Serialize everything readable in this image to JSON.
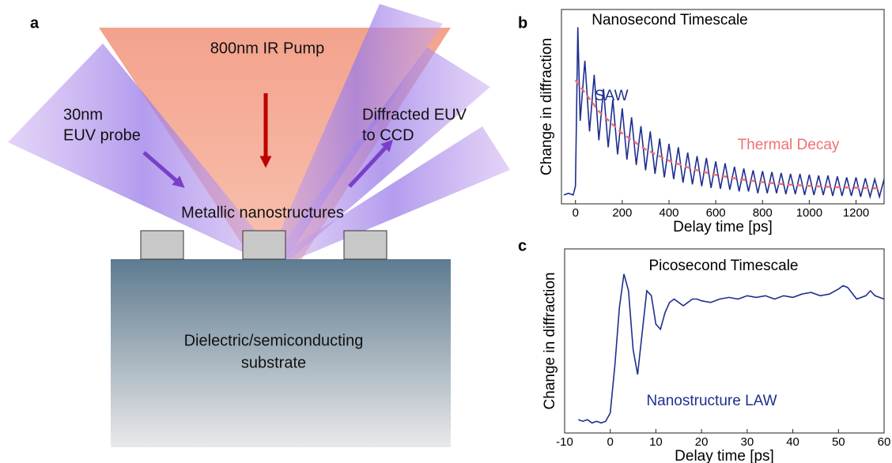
{
  "diagram": {
    "label": "a",
    "pump": "800nm IR Pump",
    "probe": [
      "30nm",
      "EUV probe"
    ],
    "diffracted": [
      "Diffracted EUV",
      "to CCD"
    ],
    "nanostructures": "Metallic nanostructures",
    "substrate": [
      "Dielectric/semiconducting",
      "substrate"
    ]
  },
  "chart_data": [
    {
      "type": "line",
      "panel_label": "b",
      "xlabel": "Delay time [ps]",
      "ylabel": "Change in diffraction",
      "xlim": [
        -60,
        1320
      ],
      "xticks": [
        0,
        200,
        400,
        600,
        800,
        1000,
        1200
      ],
      "ylim": [
        0,
        1.1
      ],
      "annotations": [
        {
          "text": "Nanosecond Timescale",
          "color": "#000000"
        },
        {
          "text": "SAW",
          "color": "#1f2f8f"
        },
        {
          "text": "Thermal Decay",
          "color": "#f07070"
        }
      ],
      "series": [
        {
          "style": "solid",
          "color": "#1f2f8f",
          "x": [
            -50,
            -30,
            -10,
            0,
            10,
            20,
            40,
            60,
            80,
            100,
            120,
            140,
            160,
            180,
            200,
            220,
            240,
            260,
            280,
            300,
            320,
            340,
            360,
            380,
            400,
            420,
            440,
            460,
            480,
            500,
            520,
            540,
            560,
            580,
            600,
            620,
            640,
            660,
            680,
            700,
            720,
            740,
            760,
            780,
            800,
            820,
            840,
            860,
            880,
            900,
            920,
            940,
            960,
            980,
            1000,
            1020,
            1040,
            1060,
            1080,
            1100,
            1120,
            1140,
            1160,
            1180,
            1200,
            1220,
            1240,
            1260,
            1280,
            1300,
            1320
          ],
          "values": [
            0.05,
            0.06,
            0.05,
            0.1,
            1.0,
            0.47,
            0.81,
            0.41,
            0.73,
            0.36,
            0.65,
            0.32,
            0.59,
            0.28,
            0.54,
            0.25,
            0.49,
            0.22,
            0.44,
            0.19,
            0.41,
            0.17,
            0.37,
            0.15,
            0.34,
            0.14,
            0.32,
            0.12,
            0.29,
            0.11,
            0.27,
            0.1,
            0.26,
            0.09,
            0.24,
            0.085,
            0.23,
            0.08,
            0.21,
            0.07,
            0.2,
            0.07,
            0.19,
            0.06,
            0.185,
            0.06,
            0.18,
            0.06,
            0.175,
            0.055,
            0.17,
            0.055,
            0.17,
            0.05,
            0.165,
            0.05,
            0.16,
            0.05,
            0.16,
            0.045,
            0.155,
            0.045,
            0.15,
            0.045,
            0.15,
            0.04,
            0.145,
            0.04,
            0.14,
            0.04,
            0.14
          ]
        },
        {
          "style": "dashed",
          "color": "#f07070",
          "x": [
            0,
            100,
            200,
            300,
            400,
            500,
            600,
            700,
            800,
            900,
            1000,
            1100,
            1200,
            1300
          ],
          "values": [
            0.7,
            0.524,
            0.398,
            0.308,
            0.244,
            0.197,
            0.164,
            0.14,
            0.123,
            0.11,
            0.102,
            0.095,
            0.091,
            0.088
          ]
        }
      ]
    },
    {
      "type": "line",
      "panel_label": "c",
      "xlabel": "Delay time [ps]",
      "ylabel": "Change in diffraction",
      "xlim": [
        -10,
        60
      ],
      "xticks": [
        -10,
        0,
        10,
        20,
        30,
        40,
        50,
        60
      ],
      "ylim": [
        0,
        1.1
      ],
      "annotations": [
        {
          "text": "Picosecond Timescale",
          "color": "#000000"
        },
        {
          "text": "Nanostructure LAW",
          "color": "#1f2f8f"
        }
      ],
      "series": [
        {
          "style": "solid",
          "color": "#1f2f8f",
          "x": [
            -7,
            -6,
            -5,
            -4,
            -3,
            -2,
            -1,
            0,
            1,
            2,
            3,
            4,
            5,
            6,
            7,
            8,
            9,
            10,
            11,
            12,
            13,
            14,
            15,
            16,
            17,
            18,
            19,
            20,
            22,
            24,
            26,
            28,
            30,
            32,
            34,
            36,
            38,
            40,
            42,
            44,
            46,
            48,
            50,
            51,
            52,
            54,
            56,
            57,
            58,
            60
          ],
          "values": [
            0.08,
            0.07,
            0.08,
            0.06,
            0.07,
            0.06,
            0.07,
            0.12,
            0.4,
            0.75,
            0.95,
            0.85,
            0.5,
            0.35,
            0.6,
            0.85,
            0.82,
            0.65,
            0.62,
            0.72,
            0.78,
            0.8,
            0.78,
            0.76,
            0.78,
            0.8,
            0.8,
            0.79,
            0.78,
            0.8,
            0.81,
            0.8,
            0.82,
            0.81,
            0.82,
            0.8,
            0.82,
            0.81,
            0.83,
            0.84,
            0.82,
            0.83,
            0.86,
            0.88,
            0.87,
            0.8,
            0.82,
            0.85,
            0.82,
            0.8
          ]
        }
      ]
    }
  ]
}
